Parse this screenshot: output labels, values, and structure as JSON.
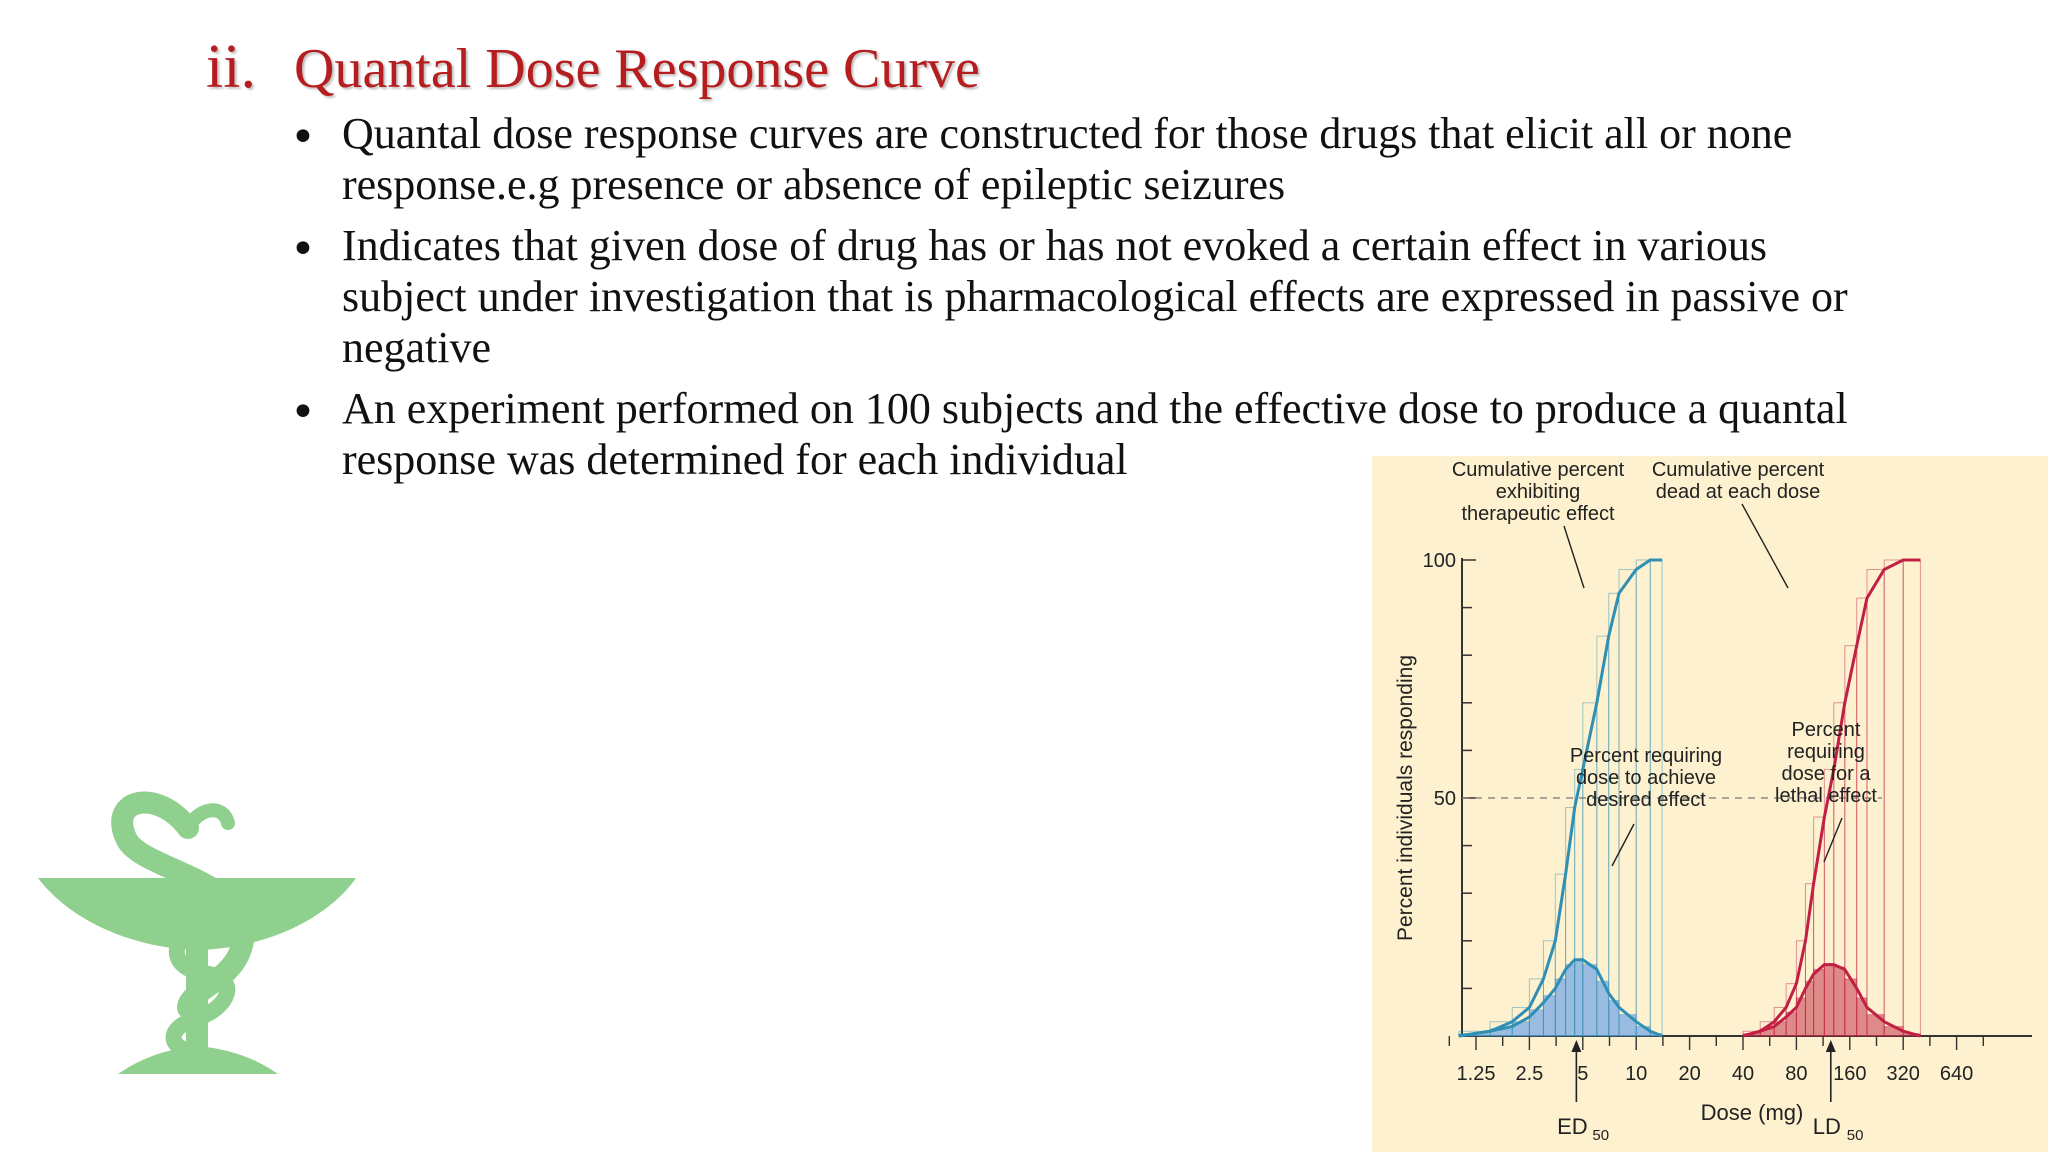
{
  "slide": {
    "title_number": "ii.",
    "title": "Quantal Dose Response Curve",
    "bullets": [
      {
        "lines": [
          "Quantal dose response curves are constructed for those drugs that elicit all or none",
          "response.e.g presence or absence of epileptic seizures"
        ]
      },
      {
        "lines": [
          "Indicates that given dose of drug has or has not evoked a certain effect in various",
          "subject under investigation that is pharmacological effects are expressed in passive or",
          "negative"
        ]
      },
      {
        "lines": [
          "An experiment performed on 100 subjects and the effective dose to produce a quantal",
          "response was determined for each individual"
        ]
      }
    ],
    "logo_icon": "pharmacy-bowl-of-hygieia-icon",
    "colors": {
      "title": "#b51d1f",
      "logo": "#8fd08f",
      "chart_bg": "#fdf1cf",
      "therapeutic": "#2f8fb5",
      "lethal": "#c21f45"
    }
  },
  "chart_data": {
    "type": "bar",
    "title": "",
    "xlabel": "Dose (mg)",
    "ylabel": "Percent individuals responding",
    "x_scale": "log2",
    "categories": [
      "1.25",
      "2.5",
      "5",
      "10",
      "20",
      "40",
      "80",
      "160",
      "320",
      "640"
    ],
    "yticks": [
      "100",
      "50"
    ],
    "ylim": [
      0,
      100
    ],
    "dashed_reference_y": 50,
    "annotations": {
      "cum_therapeutic": [
        "Cumulative percent",
        "exhibiting",
        "therapeutic effect"
      ],
      "cum_lethal": [
        "Cumulative percent",
        "dead at each dose"
      ],
      "freq_therapeutic": [
        "Percent requiring",
        "dose to achieve",
        "desired effect"
      ],
      "freq_lethal": [
        "Percent",
        "requiring",
        "dose for a",
        "lethal effect"
      ],
      "ed50_main": "ED",
      "ed50_sub": "50",
      "ld50_main": "LD",
      "ld50_sub": "50"
    },
    "series": [
      {
        "name": "Cumulative percent exhibiting therapeutic effect",
        "kind": "cumulative",
        "x": [
          1.0,
          1.5,
          2.0,
          2.5,
          3.0,
          3.5,
          4.0,
          4.5,
          5.0,
          6.0,
          7.0,
          8.0,
          10.0,
          12.0,
          14.0
        ],
        "values": [
          0,
          1,
          3,
          6,
          12,
          20,
          34,
          48,
          56,
          70,
          84,
          93,
          98,
          100,
          100
        ]
      },
      {
        "name": "Percent requiring dose to achieve desired effect",
        "kind": "frequency",
        "x": [
          1.0,
          1.5,
          2.0,
          2.5,
          3.0,
          3.5,
          4.0,
          4.5,
          5.0,
          6.0,
          7.0,
          8.0,
          10.0,
          12.0,
          14.0
        ],
        "values": [
          0,
          1,
          2,
          4,
          7,
          10,
          14,
          16,
          16,
          14,
          9,
          6,
          3,
          1,
          0
        ]
      },
      {
        "name": "Cumulative percent dead at each dose",
        "kind": "cumulative",
        "x": [
          40,
          50,
          60,
          70,
          80,
          90,
          100,
          115,
          130,
          150,
          175,
          200,
          250,
          320,
          400
        ],
        "values": [
          0,
          1,
          3,
          6,
          11,
          20,
          32,
          46,
          56,
          70,
          82,
          92,
          98,
          100,
          100
        ]
      },
      {
        "name": "Percent requiring dose for a lethal effect",
        "kind": "frequency",
        "x": [
          40,
          50,
          60,
          70,
          80,
          90,
          100,
          115,
          130,
          150,
          175,
          200,
          250,
          320,
          400
        ],
        "values": [
          0,
          1,
          2,
          4,
          6,
          10,
          13,
          15,
          15,
          14,
          10,
          6,
          3,
          1,
          0
        ]
      }
    ]
  }
}
